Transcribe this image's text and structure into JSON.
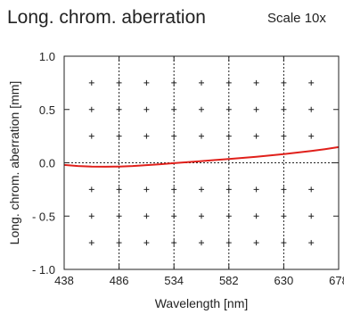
{
  "header": {
    "title": "Long. chrom. aberration",
    "scale": "Scale 10x"
  },
  "chart_data": {
    "type": "line",
    "xlabel": "Wavelength [nm]",
    "ylabel": "Long. chrom. aberration [mm]",
    "xlim": [
      438,
      678
    ],
    "ylim": [
      -1.0,
      1.0
    ],
    "x_ticks": [
      438,
      486,
      534,
      582,
      630,
      678
    ],
    "x_tick_labels": [
      "438",
      "486",
      "534",
      "582",
      "630",
      "678"
    ],
    "y_ticks": [
      1.0,
      0.5,
      0.0,
      -0.5,
      -1.0
    ],
    "y_tick_labels": [
      "1.0",
      "0.5",
      "0.0",
      "- 0.5",
      "- 1.0"
    ],
    "grid": "dotted",
    "series": [
      {
        "color": "#e0201b",
        "x": [
          438,
          450,
          462,
          474,
          486,
          498,
          510,
          522,
          534,
          546,
          558,
          570,
          582,
          594,
          606,
          618,
          630,
          642,
          654,
          666,
          678
        ],
        "y": [
          -0.02,
          -0.03,
          -0.035,
          -0.037,
          -0.035,
          -0.03,
          -0.022,
          -0.013,
          -0.003,
          0.006,
          0.016,
          0.026,
          0.036,
          0.046,
          0.057,
          0.069,
          0.082,
          0.096,
          0.111,
          0.128,
          0.147
        ]
      }
    ]
  }
}
